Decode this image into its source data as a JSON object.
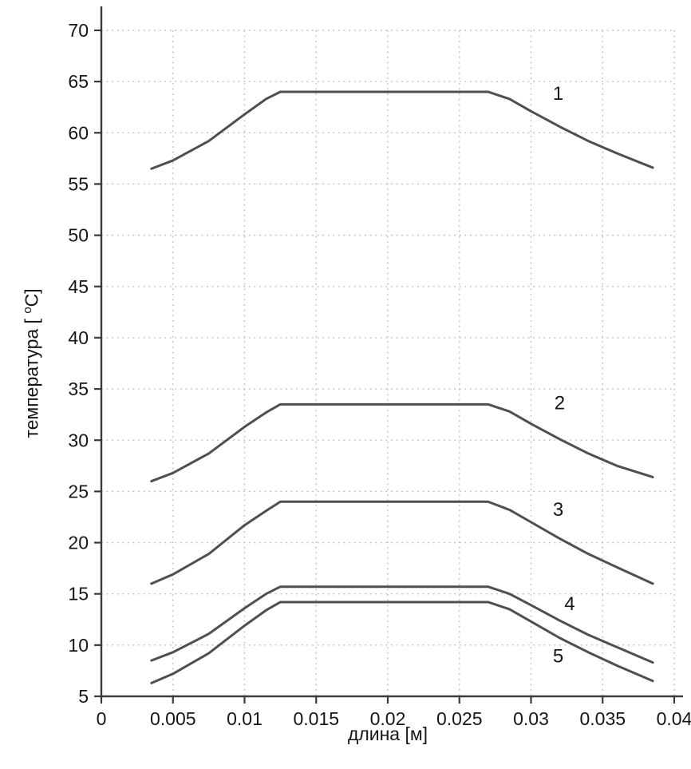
{
  "style": {
    "background": "#ffffff",
    "curve_color": "#4f4f4f",
    "axis_color": "#3a3a3a",
    "grid_color": "#bdbdbd",
    "text_color": "#161616"
  },
  "chart_data": {
    "type": "line",
    "title": "",
    "xlabel": "длина [м]",
    "ylabel": {
      "pre": "температура [ ",
      "sup": "o",
      "post": "C]"
    },
    "xlim": [
      0,
      0.04
    ],
    "ylim": [
      5,
      70
    ],
    "grid": "dotted",
    "legend_position": "none",
    "xticks": [
      0,
      0.005,
      0.01,
      0.015,
      0.02,
      0.025,
      0.03,
      0.035,
      0.04
    ],
    "xtick_labels": [
      "0",
      "0.005",
      "0.01",
      "0.015",
      "0.02",
      "0.025",
      "0.03",
      "0.035",
      "0.04"
    ],
    "yticks": [
      5,
      10,
      15,
      20,
      25,
      30,
      35,
      40,
      45,
      50,
      55,
      60,
      65,
      70
    ],
    "ytick_labels": [
      "5",
      "10",
      "15",
      "20",
      "25",
      "30",
      "35",
      "40",
      "45",
      "50",
      "55",
      "60",
      "65",
      "70"
    ],
    "series": [
      {
        "name": "1",
        "label": "1",
        "label_x": 0.0319,
        "label_y": 63.2,
        "x": [
          0.0035,
          0.005,
          0.0075,
          0.01,
          0.0115,
          0.0125,
          0.027,
          0.0285,
          0.03,
          0.032,
          0.034,
          0.036,
          0.0385
        ],
        "y": [
          56.5,
          57.3,
          59.2,
          61.8,
          63.3,
          64.0,
          64.0,
          63.3,
          62.1,
          60.6,
          59.2,
          58.0,
          56.6
        ]
      },
      {
        "name": "2",
        "label": "2",
        "label_x": 0.032,
        "label_y": 33.0,
        "x": [
          0.0035,
          0.005,
          0.0075,
          0.01,
          0.0115,
          0.0125,
          0.027,
          0.0285,
          0.03,
          0.032,
          0.034,
          0.036,
          0.0385
        ],
        "y": [
          26.0,
          26.8,
          28.7,
          31.3,
          32.7,
          33.5,
          33.5,
          32.8,
          31.6,
          30.1,
          28.7,
          27.5,
          26.4
        ]
      },
      {
        "name": "3",
        "label": "3",
        "label_x": 0.0319,
        "label_y": 22.6,
        "x": [
          0.0035,
          0.005,
          0.0075,
          0.01,
          0.0115,
          0.0125,
          0.027,
          0.0285,
          0.03,
          0.032,
          0.034,
          0.036,
          0.0385
        ],
        "y": [
          16.0,
          16.9,
          18.9,
          21.7,
          23.1,
          24.0,
          24.0,
          23.2,
          22.0,
          20.4,
          18.9,
          17.6,
          16.0
        ]
      },
      {
        "name": "4",
        "label": "4",
        "label_x": 0.0327,
        "label_y": 13.4,
        "x": [
          0.0035,
          0.005,
          0.0075,
          0.01,
          0.0115,
          0.0125,
          0.027,
          0.0285,
          0.03,
          0.032,
          0.034,
          0.036,
          0.0385
        ],
        "y": [
          8.5,
          9.3,
          11.1,
          13.6,
          15.0,
          15.7,
          15.7,
          15.0,
          13.9,
          12.4,
          11.0,
          9.8,
          8.3
        ]
      },
      {
        "name": "5",
        "label": "5",
        "label_x": 0.0319,
        "label_y": 8.3,
        "x": [
          0.0035,
          0.005,
          0.0075,
          0.01,
          0.0115,
          0.0125,
          0.027,
          0.0285,
          0.03,
          0.032,
          0.034,
          0.036,
          0.0385
        ],
        "y": [
          6.3,
          7.2,
          9.2,
          11.9,
          13.4,
          14.2,
          14.2,
          13.5,
          12.3,
          10.7,
          9.3,
          8.0,
          6.5
        ]
      }
    ]
  }
}
